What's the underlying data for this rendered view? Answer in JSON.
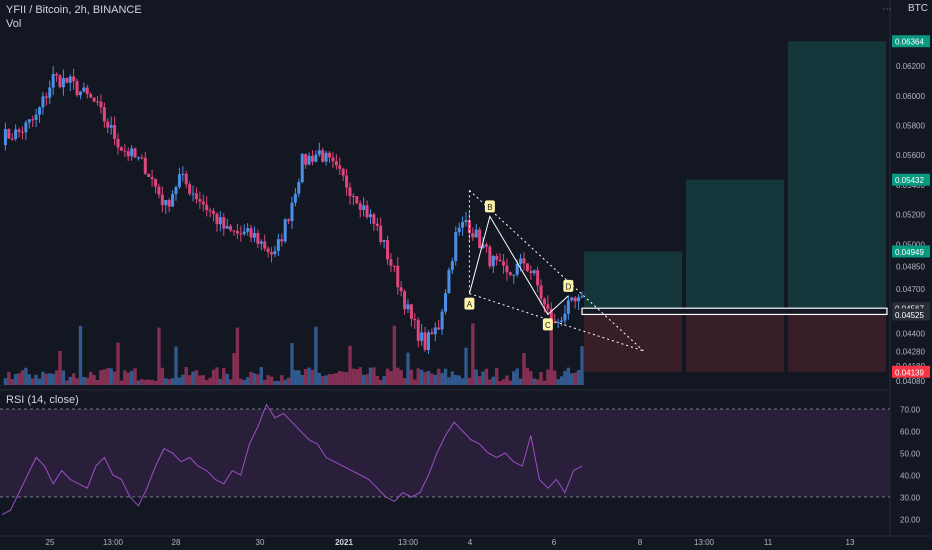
{
  "header": {
    "symbol_line": "YFII / Bitcoin, 2h, BINANCE",
    "vol_label": "Vol",
    "rsi_label": "RSI (14, close)",
    "currency_badge": "BTC",
    "menu_icon": "more-dots-icon"
  },
  "colors": {
    "background": "#131722",
    "up": "#4b8fe6",
    "down": "#e0457b",
    "profit_zone": "#163a3d",
    "loss_zone": "#3a1f27",
    "rsi": "#9c4fc4",
    "rsi_band": "#2a1f3a",
    "pattern": "#ffffff"
  },
  "price_axis": {
    "ticks": [
      "0.06200",
      "0.06000",
      "0.05800",
      "0.05600",
      "0.05400",
      "0.05200",
      "0.05000",
      "0.04850",
      "0.04700",
      "0.04550",
      "0.04400",
      "0.04280",
      "0.04180",
      "0.04080"
    ],
    "highlight_labels": [
      {
        "value": "0.06364",
        "color": "#089981"
      },
      {
        "value": "0.05432",
        "color": "#089981"
      },
      {
        "value": "0.04949",
        "color": "#089981"
      },
      {
        "value": "0.04567",
        "color": "#2a2e39"
      },
      {
        "value": "0.04525",
        "color": "#2a2e39"
      },
      {
        "value": "0.04139",
        "color": "#f23645"
      }
    ]
  },
  "rsi_axis": {
    "ticks": [
      "70.00",
      "60.00",
      "50.00",
      "40.00",
      "30.00",
      "20.00"
    ]
  },
  "time_axis": {
    "ticks": [
      "25",
      "13:00",
      "28",
      "30",
      "2021",
      "13:00",
      "4",
      "6",
      "8",
      "13:00",
      "11",
      "13"
    ]
  },
  "pattern_points": [
    "A",
    "B",
    "C",
    "D"
  ],
  "chart_data": {
    "type": "candlestick",
    "title": "YFII / Bitcoin, 2h, BINANCE",
    "price_range": [
      0.0405,
      0.0648
    ],
    "x_labels": [
      "25",
      "13:00",
      "28",
      "30",
      "2021",
      "13:00",
      "4",
      "6",
      "8",
      "13:00",
      "11",
      "13"
    ],
    "close_path": [
      {
        "x": 0,
        "y": 0.0572
      },
      {
        "x": 5,
        "y": 0.0575
      },
      {
        "x": 10,
        "y": 0.0585
      },
      {
        "x": 15,
        "y": 0.0612
      },
      {
        "x": 20,
        "y": 0.0608
      },
      {
        "x": 27,
        "y": 0.0595
      },
      {
        "x": 35,
        "y": 0.0565
      },
      {
        "x": 42,
        "y": 0.0552
      },
      {
        "x": 48,
        "y": 0.0525
      },
      {
        "x": 52,
        "y": 0.0545
      },
      {
        "x": 58,
        "y": 0.053
      },
      {
        "x": 66,
        "y": 0.0508
      },
      {
        "x": 74,
        "y": 0.0505
      },
      {
        "x": 80,
        "y": 0.0492
      },
      {
        "x": 84,
        "y": 0.052
      },
      {
        "x": 88,
        "y": 0.0555
      },
      {
        "x": 93,
        "y": 0.0562
      },
      {
        "x": 99,
        "y": 0.0546
      },
      {
        "x": 104,
        "y": 0.0532
      },
      {
        "x": 110,
        "y": 0.051
      },
      {
        "x": 116,
        "y": 0.0475
      },
      {
        "x": 120,
        "y": 0.0448
      },
      {
        "x": 124,
        "y": 0.0432
      },
      {
        "x": 128,
        "y": 0.0445
      },
      {
        "x": 130,
        "y": 0.047
      },
      {
        "x": 133,
        "y": 0.0505
      },
      {
        "x": 136,
        "y": 0.0516
      },
      {
        "x": 139,
        "y": 0.0505
      },
      {
        "x": 143,
        "y": 0.049
      },
      {
        "x": 148,
        "y": 0.0478
      },
      {
        "x": 153,
        "y": 0.0488
      },
      {
        "x": 156,
        "y": 0.0478
      },
      {
        "x": 159,
        "y": 0.0458
      },
      {
        "x": 162,
        "y": 0.0445
      },
      {
        "x": 165,
        "y": 0.0455
      },
      {
        "x": 168,
        "y": 0.046
      }
    ],
    "pattern": [
      {
        "label": "A",
        "price": 0.04665
      },
      {
        "label": "B",
        "price": 0.05185
      },
      {
        "label": "C",
        "price": 0.04525
      },
      {
        "label": "D",
        "price": 0.0465
      }
    ],
    "levels": {
      "entry": 0.04525,
      "entry_upper": 0.04567,
      "stop": 0.04139,
      "targets": [
        0.04949,
        0.05432,
        0.06364
      ]
    },
    "rsi": {
      "range": [
        15,
        75
      ],
      "bands": [
        70,
        30
      ],
      "ticks": [
        70,
        60,
        50,
        40,
        30,
        20
      ],
      "points": [
        22,
        24,
        32,
        40,
        48,
        44,
        36,
        42,
        38,
        36,
        34,
        44,
        48,
        40,
        38,
        30,
        26,
        34,
        44,
        52,
        50,
        46,
        48,
        44,
        42,
        38,
        36,
        42,
        40,
        54,
        62,
        72,
        66,
        68,
        64,
        60,
        56,
        54,
        48,
        46,
        44,
        42,
        40,
        38,
        34,
        30,
        28,
        32,
        30,
        32,
        40,
        50,
        58,
        64,
        60,
        56,
        54,
        50,
        48,
        50,
        46,
        44,
        58,
        38,
        34,
        38,
        32,
        42,
        44
      ]
    }
  }
}
